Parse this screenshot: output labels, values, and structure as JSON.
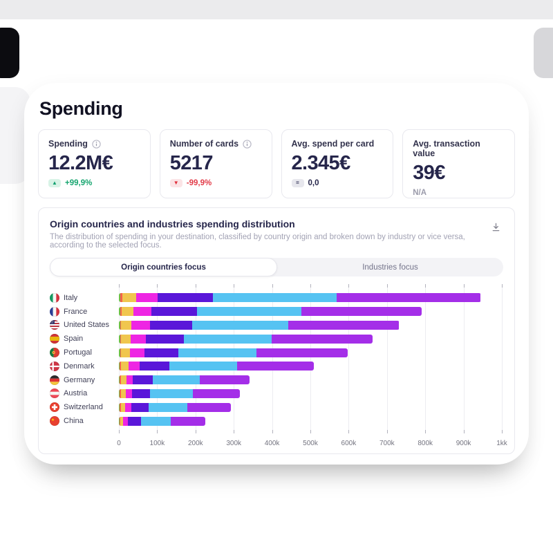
{
  "page": {
    "title": "Spending"
  },
  "kpis": [
    {
      "label": "Spending",
      "has_info": true,
      "value": "12.2M€",
      "delta": {
        "type": "up",
        "symbol": "▲",
        "text": "+99,9%"
      }
    },
    {
      "label": "Number of cards",
      "has_info": true,
      "value": "5217",
      "delta": {
        "type": "down",
        "symbol": "▼",
        "text": "-99,9%"
      }
    },
    {
      "label": "Avg. spend per card",
      "has_info": false,
      "value": "2.345€",
      "delta": {
        "type": "eq",
        "symbol": "=",
        "text": "0,0"
      }
    },
    {
      "label": "Avg. transaction value",
      "has_info": false,
      "value": "39€",
      "delta": {
        "type": "na",
        "symbol": "",
        "text": "N/A"
      }
    }
  ],
  "chart_panel": {
    "title": "Origin countries and industries spending distribution",
    "subtitle": "The distribution of spending in your destination, classified by country origin and broken down by industry or vice versa, according to the selected focus.",
    "download_icon": "download-icon",
    "tabs": [
      {
        "label": "Origin countries focus",
        "active": true
      },
      {
        "label": "Industries focus",
        "active": false
      }
    ]
  },
  "chart_data": {
    "type": "bar",
    "orientation": "horizontal",
    "stacked": true,
    "grid": true,
    "legend": false,
    "xlim": [
      0,
      1000
    ],
    "x_unit": "thousands",
    "x_ticks": [
      "0",
      "100k",
      "200k",
      "300k",
      "400k",
      "500k",
      "600k",
      "700k",
      "800k",
      "900k",
      "1kk"
    ],
    "categories": [
      "Italy",
      "France",
      "United States",
      "Spain",
      "Portugal",
      "Denmark",
      "Germany",
      "Austria",
      "Switzerland",
      "China"
    ],
    "flags": [
      "it",
      "fr",
      "us",
      "es",
      "pt",
      "dk",
      "de",
      "at",
      "ch",
      "cn"
    ],
    "series": [
      {
        "name": "segment-1",
        "color": "#6fbf44",
        "values": [
          4,
          4,
          3,
          3,
          3,
          2,
          1,
          1,
          1,
          1
        ]
      },
      {
        "name": "segment-2",
        "color": "#f4614d",
        "values": [
          5,
          4,
          3,
          3,
          3,
          4,
          4,
          4,
          4,
          2
        ]
      },
      {
        "name": "segment-3",
        "color": "#f0c64f",
        "values": [
          36,
          30,
          27,
          24,
          23,
          19,
          15,
          13,
          12,
          8
        ]
      },
      {
        "name": "segment-4",
        "color": "#ee25e3",
        "values": [
          56,
          47,
          49,
          40,
          37,
          30,
          17,
          17,
          16,
          12
        ]
      },
      {
        "name": "segment-5",
        "color": "#5a17d9",
        "values": [
          144,
          119,
          109,
          100,
          89,
          77,
          52,
          46,
          45,
          34
        ]
      },
      {
        "name": "segment-6",
        "color": "#56c3f2",
        "values": [
          324,
          272,
          251,
          229,
          204,
          176,
          122,
          112,
          100,
          79
        ]
      },
      {
        "name": "segment-7",
        "color": "#a42ee8",
        "values": [
          376,
          314,
          290,
          263,
          238,
          201,
          130,
          123,
          114,
          89
        ]
      }
    ],
    "totals": [
      945,
      790,
      732,
      662,
      597,
      509,
      341,
      316,
      292,
      225
    ]
  }
}
